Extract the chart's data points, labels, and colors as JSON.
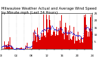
{
  "title": "Milwaukee Weather Actual and Average Wind Speed by Minute mph (Last 24 Hours)",
  "background_color": "#ffffff",
  "bar_color": "#dd0000",
  "line_color": "#0000cc",
  "grid_color": "#999999",
  "ylim": [
    0,
    25
  ],
  "n_points": 1440,
  "seed": 42,
  "title_fontsize": 3.8,
  "tick_fontsize": 3.0,
  "yticks": [
    5,
    10,
    15,
    20,
    25
  ]
}
